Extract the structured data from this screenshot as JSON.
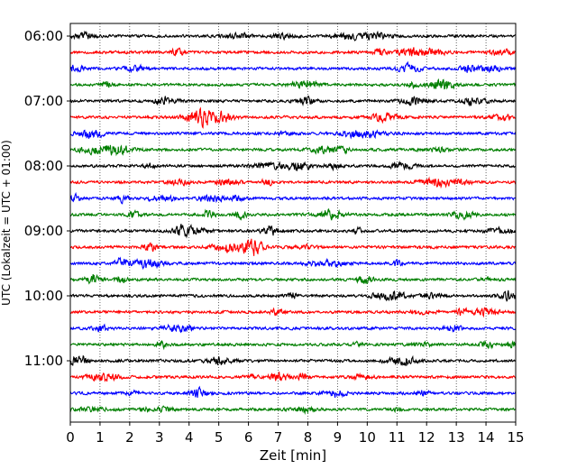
{
  "chart_data": {
    "type": "line",
    "title": "",
    "xlabel": "Zeit  [min]",
    "ylabel": "UTC (Lokalzeit = UTC + 01:00)",
    "xlim": [
      0,
      15
    ],
    "x_ticks": [
      "0",
      "1",
      "2",
      "3",
      "4",
      "5",
      "6",
      "7",
      "8",
      "9",
      "10",
      "11",
      "12",
      "13",
      "14",
      "15"
    ],
    "y_tick_labels": [
      "06:00",
      "07:00",
      "08:00",
      "09:00",
      "10:00",
      "11:00"
    ],
    "grid": "vertical dotted lines at each minute",
    "trace_start": "06:00",
    "trace_interval_minutes": 15,
    "trace_count": 24,
    "trace_colors": [
      "#000000",
      "#ff0000",
      "#0000ff",
      "#007f00"
    ]
  }
}
